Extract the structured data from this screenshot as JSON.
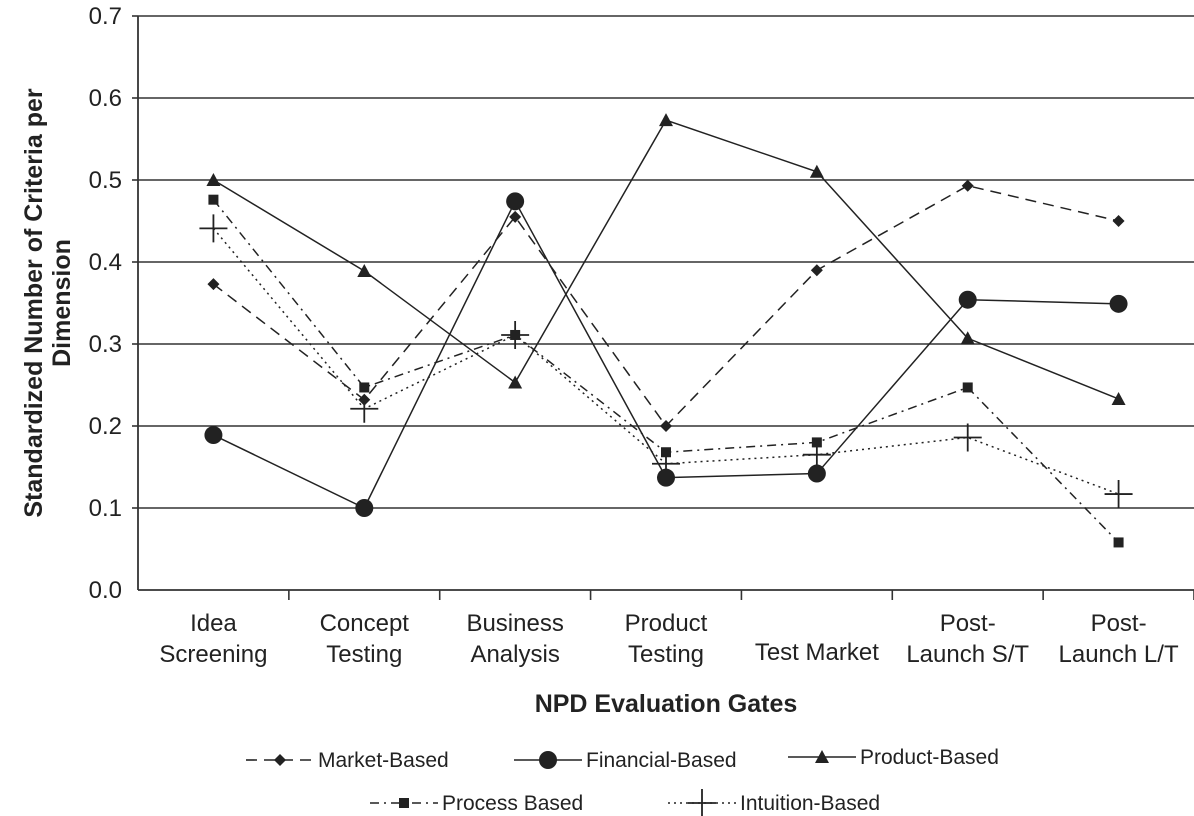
{
  "chart_data": {
    "type": "line",
    "title": "",
    "xlabel": "NPD Evaluation Gates",
    "ylabel": [
      "Standardized Number of Criteria per",
      "Dimension"
    ],
    "ylim": [
      0,
      0.7
    ],
    "yticks": [
      "0.0",
      "0.1",
      "0.2",
      "0.3",
      "0.4",
      "0.5",
      "0.6",
      "0.7"
    ],
    "grid": "horizontal",
    "legend_position": "bottom",
    "categories": [
      [
        "Idea",
        "Screening"
      ],
      [
        "Concept",
        "Testing"
      ],
      [
        "Business",
        "Analysis"
      ],
      [
        "Product",
        "Testing"
      ],
      [
        "Test Market"
      ],
      [
        "Post-",
        "Launch S/T"
      ],
      [
        "Post-",
        "Launch L/T"
      ]
    ],
    "series": [
      {
        "name": "Market-Based",
        "marker": "diamond",
        "dash": "dashed",
        "values": [
          0.373,
          0.232,
          0.455,
          0.2,
          0.39,
          0.493,
          0.45
        ]
      },
      {
        "name": "Financial-Based",
        "marker": "circle",
        "dash": "solid",
        "values": [
          0.189,
          0.1,
          0.474,
          0.137,
          0.142,
          0.354,
          0.349
        ]
      },
      {
        "name": "Product-Based",
        "marker": "triangle",
        "dash": "solid",
        "values": [
          0.5,
          0.389,
          0.253,
          0.573,
          0.51,
          0.307,
          0.233
        ]
      },
      {
        "name": "Process Based",
        "marker": "square",
        "dash": "dashdot",
        "values": [
          0.476,
          0.247,
          0.311,
          0.168,
          0.18,
          0.247,
          0.058
        ]
      },
      {
        "name": "Intuition-Based",
        "marker": "plus",
        "dash": "dotted",
        "values": [
          0.441,
          0.221,
          0.311,
          0.154,
          0.165,
          0.186,
          0.117
        ]
      }
    ]
  }
}
